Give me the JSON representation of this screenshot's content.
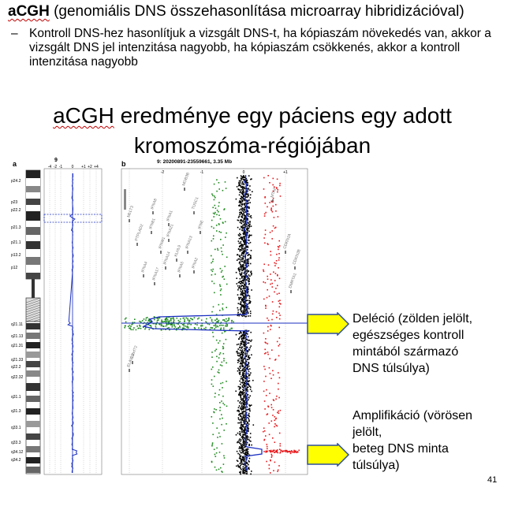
{
  "header": {
    "term": "aCGH",
    "term_expansion": " (genomiális DNS összehasonlítása microarray hibridizációval)"
  },
  "bullet": {
    "dash": "–",
    "text": "Kontroll DNS-hez hasonlítjuk a vizsgált DNS-t, ha kópiaszám növekedés van, akkor a vizsgált DNS jel intenzitása nagyobb, ha kópiaszám csökkenés, akkor a kontroll intenzitása nagyobb"
  },
  "title": {
    "line1_word": "aCGH",
    "line1_rest": " eredménye egy páciens egy adott",
    "line2": "kromoszóma-régiójában"
  },
  "figure": {
    "panel_a_label": "a",
    "panel_b_label": "b",
    "chromosome_number": "9",
    "panel_a_ticks": [
      "-4",
      "-2",
      "-1",
      "0",
      "+1",
      "+2",
      "+4"
    ],
    "panel_b_header": "9: 20200891-23559661, 3.35 Mb",
    "panel_b_ticks": [
      "-2",
      "-1",
      "0",
      "+1"
    ],
    "bands": [
      "p24.2",
      "p23",
      "p22.2",
      "p21.3",
      "p21.1",
      "p13.2",
      "p12",
      "q21.11",
      "q21.13",
      "q21.31",
      "q21.33",
      "q22.2",
      "q22.32",
      "q31.1",
      "q31.3",
      "q33.1",
      "q33.3",
      "q34.12",
      "q34.2"
    ],
    "gene_labels": [
      "MLLT3",
      "PTPLAD2",
      "IFNB1",
      "IFNW1",
      "IFNA21",
      "KLHL9",
      "IFNA4",
      "IFNA17",
      "IFNA14",
      "IFNA5",
      "IFNA13",
      "IFNA2",
      "IFNA8",
      "IFNA1",
      "IFNE",
      "MTAP",
      "CDKN2A",
      "CDKN2B",
      "DMRTA1",
      "ELAVL2",
      "C9orf72",
      "MOB3B",
      "TUSC1"
    ],
    "colors": {
      "gain": "#e8191d",
      "loss": "#1f8a1f",
      "neutral": "#000000",
      "trend": "#1a2fc0",
      "arrow_fill": "#ffff00",
      "arrow_stroke": "#2f4f9e"
    }
  },
  "callouts": {
    "deletion": [
      "Deléció (zölden jelölt,",
      "egészséges kontroll",
      "mintából származó",
      "DNS túlsúlya)"
    ],
    "amplification": [
      "Amplifikáció (vörösen",
      "jelölt,",
      "beteg DNS minta",
      "túlsúlya)"
    ]
  },
  "page_number": "41"
}
